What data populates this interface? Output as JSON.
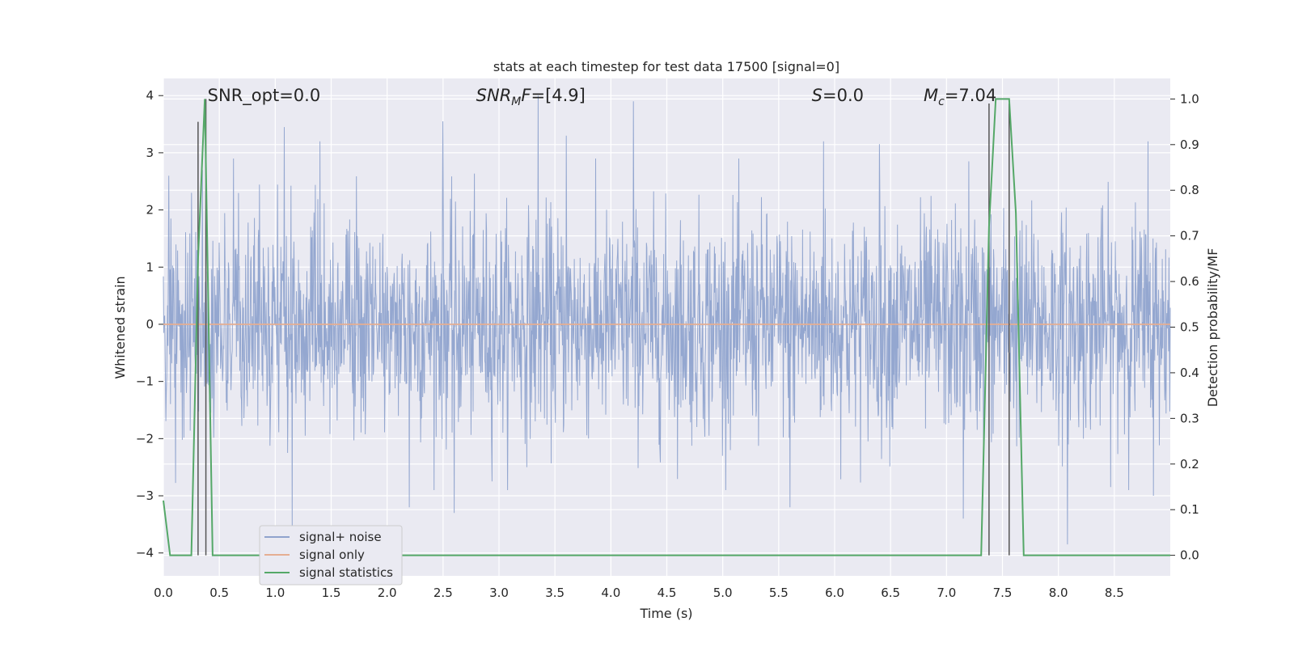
{
  "chart_data": {
    "type": "line",
    "title": "stats at each timestep for test data 17500 [signal=0]",
    "xlabel": "Time (s)",
    "ylabel": "Whitened strain",
    "y2label": "Detection probability/MF",
    "xlim": [
      0.0,
      9.0
    ],
    "ylim": [
      -4.4,
      4.3
    ],
    "y2lim": [
      -0.045,
      1.045
    ],
    "xticks": [
      0.0,
      0.5,
      1.0,
      1.5,
      2.0,
      2.5,
      3.0,
      3.5,
      4.0,
      4.5,
      5.0,
      5.5,
      6.0,
      6.5,
      7.0,
      7.5,
      8.0,
      8.5
    ],
    "xtick_labels": [
      "0.0",
      "0.5",
      "1.0",
      "1.5",
      "2.0",
      "2.5",
      "3.0",
      "3.5",
      "4.0",
      "4.5",
      "5.0",
      "5.5",
      "6.0",
      "6.5",
      "7.0",
      "7.5",
      "8.0",
      "8.5"
    ],
    "yticks": [
      4,
      3,
      2,
      1,
      0,
      -1,
      -2,
      -3,
      -4
    ],
    "ytick_labels": [
      "4",
      "3",
      "2",
      "1",
      "0",
      "−1",
      "−2",
      "−3",
      "−4"
    ],
    "y2ticks": [
      1.0,
      0.9,
      0.8,
      0.7,
      0.6,
      0.5,
      0.4,
      0.3,
      0.2,
      0.1,
      0.0
    ],
    "y2tick_labels": [
      "1.0",
      "0.9",
      "0.8",
      "0.7",
      "0.6",
      "0.5",
      "0.4",
      "0.3",
      "0.2",
      "0.1",
      "0.0"
    ],
    "grid": true,
    "legend": {
      "placement": "lower-left",
      "entries": [
        {
          "label": "signal+ noise",
          "color": "#8fa3cd"
        },
        {
          "label": "signal only",
          "color": "#e5ae92"
        },
        {
          "label": "signal statistics",
          "color": "#55a868"
        }
      ]
    },
    "annotations": [
      {
        "x": 0.2,
        "y": 4.0,
        "text": "SNR_opt=0.0"
      },
      {
        "x": 2.6,
        "y": 4.0,
        "text": "SNR_MF=[4.9]"
      },
      {
        "x": 5.6,
        "y": 4.0,
        "text": "S=0.0"
      },
      {
        "x": 6.6,
        "y": 4.0,
        "text": "M_c=7.04"
      }
    ],
    "series": [
      {
        "name": "signal+ noise",
        "axis": "left",
        "color": "#8fa3cd",
        "description_only": false,
        "envelope": {
          "typical_abs": 1.5,
          "peaks": [
            {
              "x": 0.05,
              "y": 2.6
            },
            {
              "x": 0.25,
              "y": 2.3
            },
            {
              "x": 0.35,
              "y": 2.7
            },
            {
              "x": 1.08,
              "y": 3.45
            },
            {
              "x": 1.15,
              "y": -3.6
            },
            {
              "x": 1.4,
              "y": 3.2
            },
            {
              "x": 2.2,
              "y": -3.2
            },
            {
              "x": 2.5,
              "y": 3.55
            },
            {
              "x": 2.6,
              "y": -3.3
            },
            {
              "x": 3.35,
              "y": 4.0
            },
            {
              "x": 3.6,
              "y": 3.3
            },
            {
              "x": 4.2,
              "y": 3.9
            },
            {
              "x": 4.68,
              "y": -0.6
            },
            {
              "x": 5.6,
              "y": -3.2
            },
            {
              "x": 5.9,
              "y": 3.2
            },
            {
              "x": 6.4,
              "y": 3.15
            },
            {
              "x": 7.15,
              "y": -3.4
            },
            {
              "x": 7.2,
              "y": 2.85
            },
            {
              "x": 8.08,
              "y": -3.85
            },
            {
              "x": 8.8,
              "y": 3.2
            },
            {
              "x": 8.85,
              "y": -3.0
            }
          ]
        }
      },
      {
        "name": "signal only",
        "axis": "left",
        "color": "#e5ae92",
        "x": [
          0.0,
          9.0
        ],
        "y": [
          0.0,
          0.0
        ]
      },
      {
        "name": "signal statistics",
        "axis": "right",
        "color": "#55a868",
        "x": [
          0.0,
          0.06,
          0.12,
          0.19,
          0.25,
          0.31,
          0.37,
          0.44,
          0.5,
          7.31,
          7.38,
          7.44,
          7.5,
          7.56,
          7.62,
          7.69,
          7.75,
          9.0
        ],
        "y": [
          0.12,
          0.0,
          0.0,
          0.0,
          0.0,
          0.65,
          1.0,
          0.0,
          0.0,
          0.0,
          0.72,
          1.0,
          1.0,
          1.0,
          0.75,
          0.0,
          0.0,
          0.0
        ]
      }
    ],
    "vlines": [
      {
        "x": 0.31,
        "ymin": 0.0,
        "ymax": 0.95,
        "color": "#555555"
      },
      {
        "x": 0.38,
        "ymin": 0.0,
        "ymax": 1.0,
        "color": "#555555"
      },
      {
        "x": 7.38,
        "ymin": 0.0,
        "ymax": 0.99,
        "color": "#555555"
      },
      {
        "x": 7.56,
        "ymin": 0.0,
        "ymax": 0.99,
        "color": "#555555"
      }
    ]
  }
}
